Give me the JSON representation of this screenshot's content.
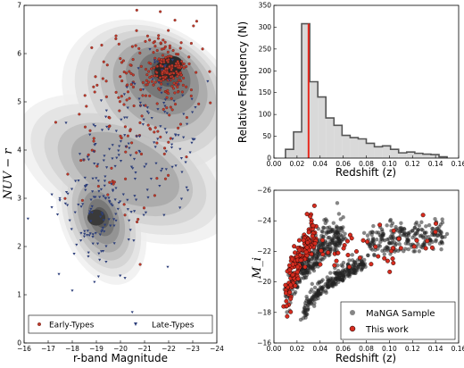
{
  "chart_data": [
    {
      "panel": "color-magnitude",
      "type": "scatter",
      "xlabel": "r-band Magnitude",
      "ylabel": "NUV − r",
      "xlim": [
        -16,
        -24
      ],
      "ylim": [
        0,
        7
      ],
      "xticks": [
        "−16",
        "−17",
        "−18",
        "−19",
        "−20",
        "−21",
        "−22",
        "−23",
        "−24"
      ],
      "yticks": [
        "0",
        "1",
        "2",
        "3",
        "4",
        "5",
        "6",
        "7"
      ],
      "legend": {
        "location": "bottom",
        "entries": [
          "Early-Types",
          "Late-Types"
        ]
      },
      "series": [
        {
          "name": "Early-Types",
          "color": "#c0392b",
          "marker": "circle",
          "clusters": [
            {
              "x": -22.0,
              "y": 5.7,
              "sx": 0.5,
              "sy": 0.3,
              "n": 140
            },
            {
              "x": -21.0,
              "y": 5.4,
              "sx": 1.2,
              "sy": 0.6,
              "n": 120
            },
            {
              "x": -20.0,
              "y": 4.0,
              "sx": 1.4,
              "sy": 0.9,
              "n": 60
            }
          ]
        },
        {
          "name": "Late-Types",
          "color": "#2c3e7a",
          "marker": "triangle-down",
          "clusters": [
            {
              "x": -19.0,
              "y": 2.7,
              "sx": 0.9,
              "sy": 0.7,
              "n": 110
            },
            {
              "x": -20.5,
              "y": 3.5,
              "sx": 1.5,
              "sy": 0.9,
              "n": 90
            },
            {
              "x": -21.5,
              "y": 5.0,
              "sx": 1.0,
              "sy": 0.7,
              "n": 60
            }
          ]
        }
      ],
      "density": {
        "levels": 8,
        "modes": [
          {
            "x": -22.0,
            "y": 5.7
          },
          {
            "x": -19.0,
            "y": 2.6
          }
        ]
      }
    },
    {
      "panel": "redshift-histogram",
      "type": "bar",
      "xlabel": "Redshift (z)",
      "ylabel": "Relative Frequency (N)",
      "xlim": [
        0.0,
        0.16
      ],
      "ylim": [
        0,
        350
      ],
      "xticks": [
        "0.00",
        "0.02",
        "0.04",
        "0.06",
        "0.08",
        "0.10",
        "0.12",
        "0.14",
        "0.16"
      ],
      "yticks": [
        "0",
        "50",
        "100",
        "150",
        "200",
        "250",
        "300",
        "350"
      ],
      "bin_edges": [
        0.01,
        0.017,
        0.024,
        0.031,
        0.038,
        0.045,
        0.052,
        0.059,
        0.066,
        0.073,
        0.08,
        0.087,
        0.094,
        0.101,
        0.108,
        0.115,
        0.122,
        0.129,
        0.136,
        0.143,
        0.15
      ],
      "values": [
        20,
        60,
        308,
        175,
        140,
        92,
        75,
        52,
        47,
        44,
        34,
        26,
        28,
        20,
        12,
        14,
        11,
        9,
        8,
        3
      ],
      "marker_line": {
        "x": 0.03,
        "color": "#e8281e"
      },
      "bar_color": "#d9d9d9",
      "edge_color": "#555555"
    },
    {
      "panel": "redshift-magnitude",
      "type": "scatter",
      "xlabel": "Redshift (z)",
      "ylabel": "M_i",
      "xlim": [
        0.0,
        0.16
      ],
      "ylim": [
        -16,
        -26
      ],
      "xticks": [
        "0.00",
        "0.02",
        "0.04",
        "0.06",
        "0.08",
        "0.10",
        "0.12",
        "0.14",
        "0.16"
      ],
      "yticks": [
        "−16",
        "−18",
        "−20",
        "−22",
        "−24",
        "−26"
      ],
      "legend": {
        "location": "lower right",
        "entries": [
          "MaNGA Sample",
          "This work"
        ]
      },
      "series": [
        {
          "name": "MaNGA Sample",
          "color": "#222222",
          "marker": "circle",
          "bands": [
            {
              "z": [
                0.012,
                0.06
              ],
              "m": [
                -17.5,
                -22.5
              ],
              "spread": 0.9,
              "n": 320
            },
            {
              "z": [
                0.025,
                0.08
              ],
              "m": [
                -17.0,
                -21.0
              ],
              "spread": 0.4,
              "n": 260
            },
            {
              "z": [
                0.08,
                0.15
              ],
              "m": [
                -22.6,
                -23.2
              ],
              "spread": 0.5,
              "n": 220
            }
          ]
        },
        {
          "name": "This work",
          "color": "#d62c1f",
          "marker": "circle",
          "bands": [
            {
              "z": [
                0.012,
                0.035
              ],
              "m": [
                -17.5,
                -22.5
              ],
              "spread": 1.1,
              "n": 150
            },
            {
              "z": [
                0.04,
                0.14
              ],
              "m": [
                -21.8,
                -23.0
              ],
              "spread": 0.7,
              "n": 45
            }
          ]
        }
      ]
    }
  ]
}
